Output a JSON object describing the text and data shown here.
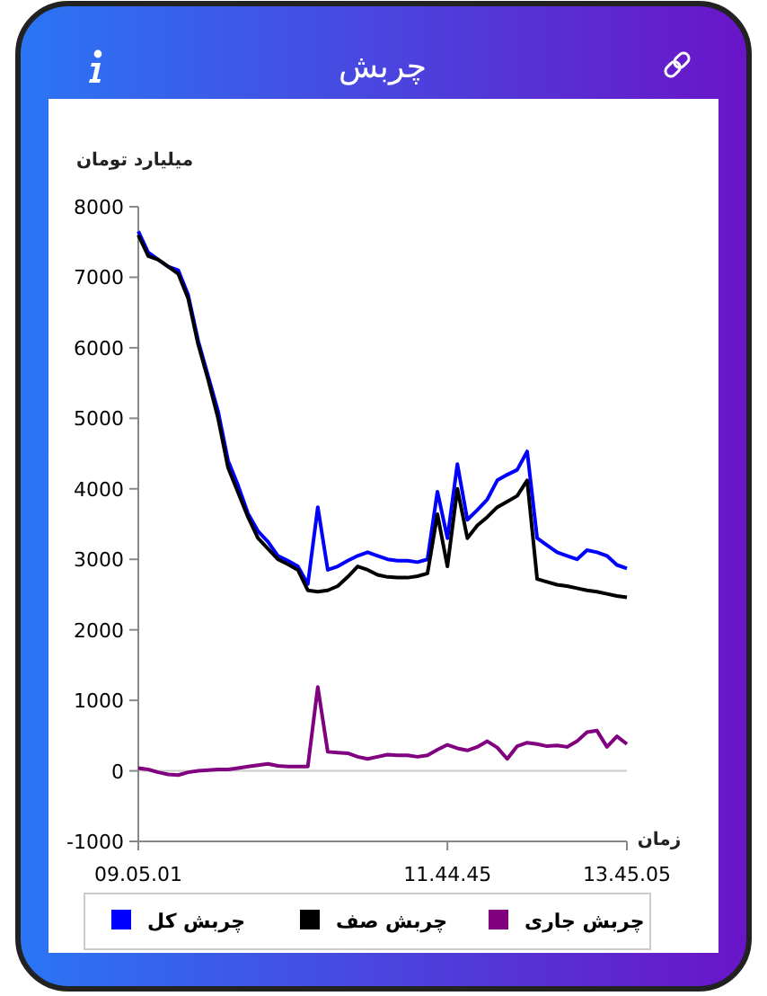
{
  "chart_data": {
    "type": "line",
    "title": "چربش",
    "ylabel": "میلیارد تومان",
    "xlabel": "زمان",
    "categories": [
      "09.05.01",
      null,
      null,
      null,
      null,
      null,
      null,
      null,
      null,
      null,
      null,
      null,
      null,
      null,
      null,
      null,
      null,
      null,
      null,
      null,
      null,
      null,
      null,
      null,
      null,
      null,
      null,
      null,
      null,
      null,
      null,
      "11.44.45",
      null,
      null,
      null,
      null,
      null,
      null,
      null,
      null,
      null,
      null,
      null,
      null,
      null,
      null,
      null,
      null,
      null,
      "13.45.05"
    ],
    "series": [
      {
        "name": "چربش کل",
        "color": "#0000ff",
        "values": [
          7650,
          7350,
          7250,
          7150,
          7100,
          6750,
          6100,
          5600,
          5100,
          4400,
          4050,
          3650,
          3400,
          3250,
          3050,
          2980,
          2900,
          2650,
          3740,
          2850,
          2900,
          2980,
          3050,
          3100,
          3050,
          3000,
          2980,
          2980,
          2960,
          3000,
          3960,
          3300,
          4350,
          3560,
          3700,
          3850,
          4120,
          4200,
          4270,
          4530,
          3300,
          3200,
          3100,
          3050,
          3000,
          3130,
          3100,
          3050,
          2920,
          2870
        ]
      },
      {
        "name": "چربش صف",
        "color": "#000000",
        "values": [
          7600,
          7300,
          7250,
          7150,
          7050,
          6700,
          6050,
          5550,
          5000,
          4300,
          3950,
          3600,
          3300,
          3150,
          3000,
          2930,
          2850,
          2560,
          2540,
          2560,
          2620,
          2750,
          2900,
          2850,
          2780,
          2750,
          2740,
          2740,
          2760,
          2800,
          3640,
          2900,
          4000,
          3300,
          3480,
          3600,
          3740,
          3820,
          3900,
          4120,
          2720,
          2680,
          2640,
          2620,
          2590,
          2560,
          2540,
          2510,
          2480,
          2460
        ]
      },
      {
        "name": "چربش جاری",
        "color": "#800080",
        "values": [
          40,
          20,
          -20,
          -50,
          -60,
          -20,
          0,
          10,
          20,
          20,
          40,
          60,
          80,
          100,
          70,
          60,
          60,
          60,
          1190,
          270,
          260,
          250,
          200,
          170,
          200,
          230,
          220,
          220,
          200,
          220,
          300,
          370,
          320,
          290,
          340,
          420,
          330,
          170,
          350,
          400,
          380,
          350,
          360,
          340,
          420,
          550,
          570,
          340,
          490,
          380
        ]
      }
    ],
    "ylim": [
      -1000,
      8000
    ],
    "yticks": [
      -1000,
      0,
      1000,
      2000,
      3000,
      4000,
      5000,
      6000,
      7000,
      8000
    ],
    "ref_lines": [
      {
        "axis": "y",
        "value": 0,
        "color": "#cccccc"
      }
    ],
    "legend": "bottom",
    "marker": "none",
    "line_style": "solid"
  }
}
